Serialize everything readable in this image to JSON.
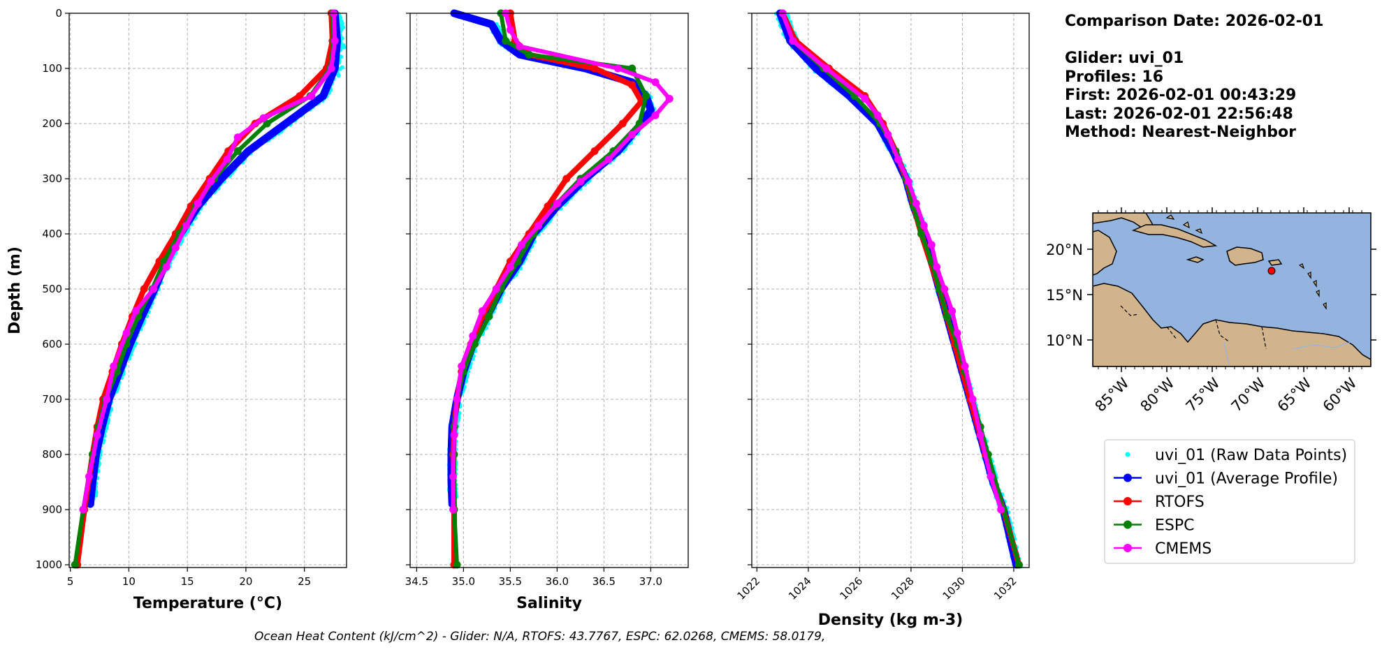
{
  "info": {
    "comparison_date": "Comparison Date: 2026-02-01",
    "glider": "Glider: uvi_01",
    "profiles": "Profiles: 16",
    "first": "First: 2026-02-01 00:43:29",
    "last": "Last: 2026-02-01 22:56:48",
    "method": "Method: Nearest-Neighbor"
  },
  "footer": "Ocean Heat Content (kJ/cm^2) - Glider: N/A,  RTOFS: 43.7767,  ESPC: 62.0268,  CMEMS: 58.0179,",
  "colors": {
    "raw": "#00ffff",
    "avg": "#0000ff",
    "rtofs": "#ff0000",
    "espc": "#008000",
    "cmems": "#ff00ff"
  },
  "legend": [
    {
      "label": "uvi_01 (Raw Data Points)",
      "color": "#00ffff",
      "style": "dots"
    },
    {
      "label": "uvi_01 (Average Profile)",
      "color": "#0000ff",
      "style": "line"
    },
    {
      "label": "RTOFS",
      "color": "#ff0000",
      "style": "line"
    },
    {
      "label": "ESPC",
      "color": "#008000",
      "style": "line"
    },
    {
      "label": "CMEMS",
      "color": "#ff00ff",
      "style": "line"
    }
  ],
  "chart_data": [
    {
      "type": "line",
      "xlabel": "Temperature (°C)",
      "ylabel": "Depth (m)",
      "xlim": [
        4.9,
        28.6
      ],
      "ylim": [
        1005,
        0
      ],
      "xticks": [
        5,
        10,
        15,
        20,
        25
      ],
      "yticks": [
        0,
        100,
        200,
        300,
        400,
        500,
        600,
        700,
        800,
        900,
        1000
      ],
      "grid": true,
      "series": [
        {
          "name": "uvi_01 (Average Profile)",
          "color": "#0000ff",
          "depth": [
            0,
            50,
            100,
            150,
            200,
            250,
            300,
            350,
            400,
            450,
            500,
            550,
            600,
            650,
            700,
            750,
            800,
            850,
            890
          ],
          "values": [
            27.6,
            27.8,
            27.6,
            26.6,
            23.4,
            20.2,
            17.9,
            15.9,
            14.4,
            13.2,
            12.2,
            11.1,
            10.1,
            9.2,
            8.3,
            7.7,
            7.2,
            6.9,
            6.7
          ]
        },
        {
          "name": "RTOFS",
          "color": "#ff0000",
          "depth": [
            0,
            50,
            100,
            150,
            200,
            250,
            300,
            350,
            400,
            450,
            500,
            550,
            600,
            650,
            700,
            750,
            800,
            900,
            1000
          ],
          "values": [
            27.3,
            27.4,
            26.9,
            24.6,
            20.8,
            18.5,
            16.9,
            15.3,
            14.0,
            12.6,
            11.3,
            10.3,
            9.4,
            8.6,
            7.8,
            7.3,
            6.9,
            6.2,
            5.6
          ]
        },
        {
          "name": "ESPC",
          "color": "#008000",
          "depth": [
            0,
            50,
            100,
            150,
            200,
            250,
            300,
            350,
            400,
            450,
            500,
            550,
            600,
            650,
            700,
            750,
            800,
            900,
            1000
          ],
          "values": [
            27.4,
            27.5,
            27.2,
            25.5,
            21.8,
            19.3,
            17.3,
            15.7,
            14.3,
            13.0,
            12.0,
            10.8,
            9.8,
            9.0,
            8.0,
            7.4,
            6.9,
            6.1,
            5.4
          ]
        },
        {
          "name": "CMEMS",
          "color": "#ff00ff",
          "depth": [
            0,
            50,
            100,
            150,
            190,
            225,
            265,
            305,
            345,
            385,
            425,
            460,
            500,
            540,
            580,
            640,
            700,
            765,
            840,
            900
          ],
          "values": [
            27.5,
            27.6,
            27.3,
            25.6,
            21.5,
            19.3,
            18.4,
            17.0,
            15.9,
            14.9,
            14.0,
            13.2,
            12.1,
            10.6,
            9.8,
            8.7,
            8.1,
            7.3,
            6.6,
            6.1
          ]
        }
      ]
    },
    {
      "type": "line",
      "xlabel": "Salinity",
      "ylabel": "",
      "xlim": [
        34.43,
        37.4
      ],
      "ylim": [
        1005,
        0
      ],
      "xticks": [
        34.5,
        35.0,
        35.5,
        36.0,
        36.5,
        37.0
      ],
      "yticks": [
        0,
        100,
        200,
        300,
        400,
        500,
        600,
        700,
        800,
        900,
        1000
      ],
      "grid": true,
      "series": [
        {
          "name": "uvi_01 (Average Profile)",
          "color": "#0000ff",
          "depth": [
            0,
            20,
            50,
            75,
            100,
            125,
            150,
            175,
            200,
            250,
            300,
            350,
            400,
            450,
            500,
            550,
            600,
            650,
            700,
            750,
            800,
            850,
            890
          ],
          "values": [
            34.9,
            35.3,
            35.4,
            35.6,
            36.3,
            36.8,
            36.95,
            37.0,
            36.9,
            36.65,
            36.3,
            36.0,
            35.75,
            35.6,
            35.4,
            35.25,
            35.1,
            35.0,
            34.93,
            34.88,
            34.87,
            34.87,
            34.88
          ]
        },
        {
          "name": "RTOFS",
          "color": "#ff0000",
          "depth": [
            0,
            50,
            75,
            100,
            130,
            160,
            200,
            250,
            300,
            350,
            400,
            450,
            500,
            550,
            600,
            650,
            700,
            750,
            800,
            900,
            1000
          ],
          "values": [
            35.5,
            35.55,
            35.7,
            36.4,
            36.8,
            36.9,
            36.7,
            36.4,
            36.1,
            35.9,
            35.7,
            35.5,
            35.35,
            35.2,
            35.08,
            34.98,
            34.93,
            34.9,
            34.89,
            34.9,
            34.9
          ]
        },
        {
          "name": "ESPC",
          "color": "#008000",
          "depth": [
            0,
            50,
            75,
            100,
            150,
            200,
            250,
            300,
            350,
            400,
            450,
            500,
            550,
            600,
            650,
            700,
            750,
            800,
            900,
            1000
          ],
          "values": [
            35.4,
            35.45,
            35.7,
            36.8,
            36.95,
            36.88,
            36.6,
            36.25,
            35.97,
            35.75,
            35.58,
            35.4,
            35.27,
            35.12,
            35.0,
            34.93,
            34.9,
            34.9,
            34.9,
            34.93
          ]
        },
        {
          "name": "CMEMS",
          "color": "#ff00ff",
          "depth": [
            0,
            30,
            60,
            100,
            125,
            155,
            185,
            220,
            265,
            305,
            345,
            385,
            420,
            460,
            500,
            540,
            585,
            640,
            700,
            765,
            840,
            900
          ],
          "values": [
            35.45,
            35.5,
            35.6,
            36.65,
            37.05,
            37.2,
            37.05,
            36.8,
            36.55,
            36.25,
            36.0,
            35.8,
            35.62,
            35.5,
            35.35,
            35.2,
            35.1,
            34.98,
            34.93,
            34.9,
            34.89,
            34.89
          ]
        }
      ]
    },
    {
      "type": "line",
      "xlabel": "Density (kg m-3)",
      "ylabel": "",
      "xlim": [
        1021.8,
        1032.6
      ],
      "ylim": [
        1005,
        0
      ],
      "xticks": [
        1022,
        1024,
        1026,
        1028,
        1030,
        1032
      ],
      "yticks": [
        0,
        100,
        200,
        300,
        400,
        500,
        600,
        700,
        800,
        900,
        1000
      ],
      "grid": true,
      "series": [
        {
          "name": "uvi_01 (Average Profile)",
          "color": "#0000ff",
          "depth": [
            0,
            50,
            100,
            150,
            200,
            250,
            300,
            350,
            400,
            450,
            500,
            550,
            600,
            650,
            700,
            750,
            800,
            850,
            900,
            1000
          ],
          "values": [
            1022.9,
            1023.3,
            1024.3,
            1025.6,
            1026.7,
            1027.3,
            1027.8,
            1028.1,
            1028.5,
            1028.8,
            1029.1,
            1029.4,
            1029.7,
            1030.0,
            1030.3,
            1030.6,
            1030.9,
            1031.2,
            1031.6,
            1032.1
          ]
        },
        {
          "name": "RTOFS",
          "color": "#ff0000",
          "depth": [
            0,
            50,
            100,
            150,
            200,
            250,
            300,
            400,
            500,
            600,
            700,
            800,
            900,
            1000
          ],
          "values": [
            1023.0,
            1023.5,
            1024.8,
            1026.2,
            1026.9,
            1027.4,
            1027.8,
            1028.4,
            1029.1,
            1029.7,
            1030.3,
            1030.9,
            1031.6,
            1032.2
          ]
        },
        {
          "name": "ESPC",
          "color": "#008000",
          "depth": [
            0,
            50,
            100,
            150,
            200,
            250,
            300,
            350,
            400,
            450,
            500,
            550,
            600,
            650,
            700,
            750,
            800,
            900,
            1000
          ],
          "values": [
            1023.0,
            1023.4,
            1024.6,
            1025.8,
            1026.8,
            1027.4,
            1027.8,
            1028.1,
            1028.4,
            1028.8,
            1029.1,
            1029.4,
            1029.8,
            1030.1,
            1030.4,
            1030.7,
            1031.0,
            1031.6,
            1032.2
          ]
        },
        {
          "name": "CMEMS",
          "color": "#ff00ff",
          "depth": [
            0,
            50,
            100,
            155,
            185,
            220,
            265,
            305,
            345,
            385,
            420,
            460,
            500,
            540,
            580,
            640,
            700,
            765,
            840,
            900
          ],
          "values": [
            1023.0,
            1023.4,
            1024.7,
            1026.2,
            1026.7,
            1027.1,
            1027.5,
            1027.9,
            1028.2,
            1028.5,
            1028.8,
            1029.0,
            1029.3,
            1029.6,
            1029.8,
            1030.1,
            1030.4,
            1030.7,
            1031.1,
            1031.5
          ]
        }
      ]
    }
  ],
  "map": {
    "lat_ticks": [
      "20°N",
      "15°N",
      "10°N"
    ],
    "lon_ticks": [
      "85°W",
      "80°W",
      "75°W",
      "70°W",
      "65°W",
      "60°W"
    ],
    "ocean_color": "#94b4e0",
    "land_color": "#d2b48c",
    "marker_color": "#ff0000"
  }
}
